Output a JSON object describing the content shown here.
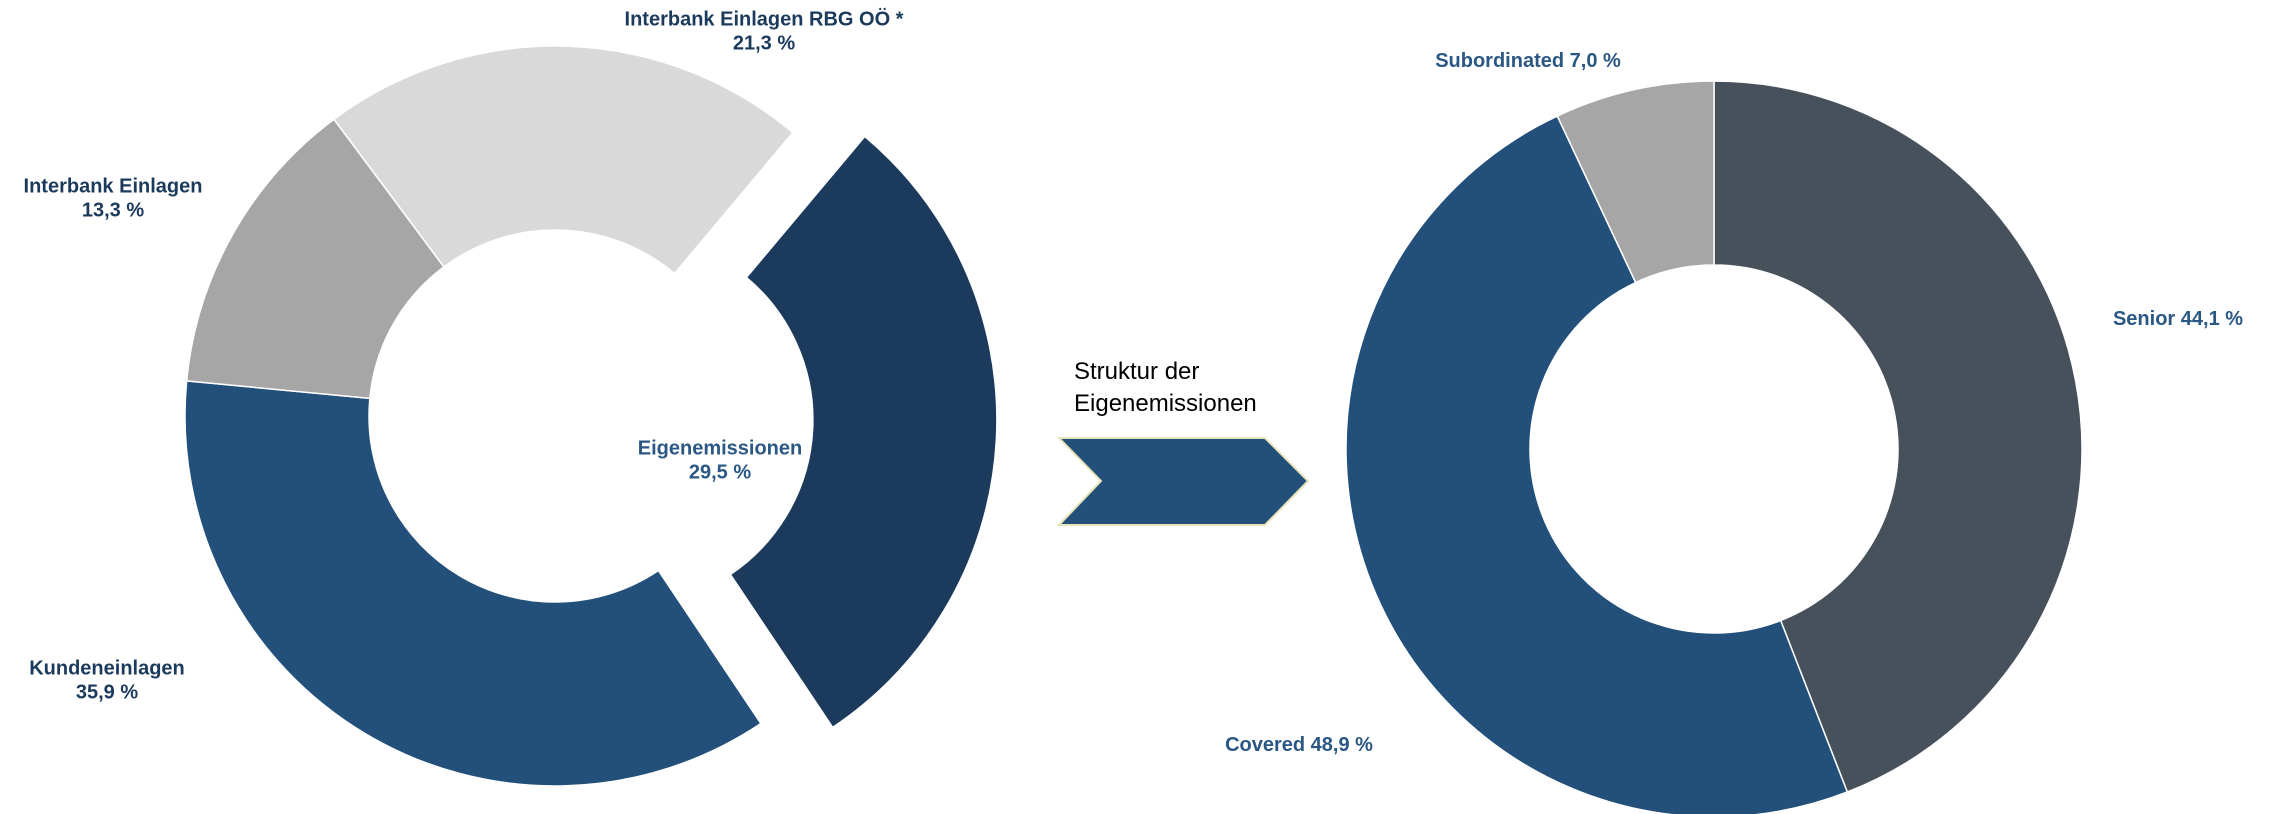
{
  "chart_data": [
    {
      "type": "donut",
      "categories": [
        "Eigenemissionen",
        "Kundeneinlagen",
        "Interbank Einlagen",
        "Interbank Einlagen RBG OÖ *"
      ],
      "values": [
        29.5,
        35.9,
        13.3,
        21.3
      ],
      "value_labels": [
        "29,5 %",
        "35,9 %",
        "13,3 %",
        "21,3 %"
      ],
      "colors": [
        "#1b3a5c",
        "#22507a",
        "#a6a6a6",
        "#d9d9d9"
      ],
      "exploded": [
        true,
        false,
        false,
        false
      ]
    },
    {
      "type": "donut",
      "annotation": "Struktur der Eigenemissionen",
      "categories": [
        "Senior",
        "Covered",
        "Subordinated"
      ],
      "values": [
        44.1,
        48.9,
        7.0
      ],
      "value_labels": [
        "44,1 %",
        "48,9 %",
        "7,0 %"
      ],
      "colors": [
        "#47515c",
        "#22507a",
        "#a6a6a6"
      ],
      "exploded": [
        false,
        false,
        false
      ]
    }
  ]
}
